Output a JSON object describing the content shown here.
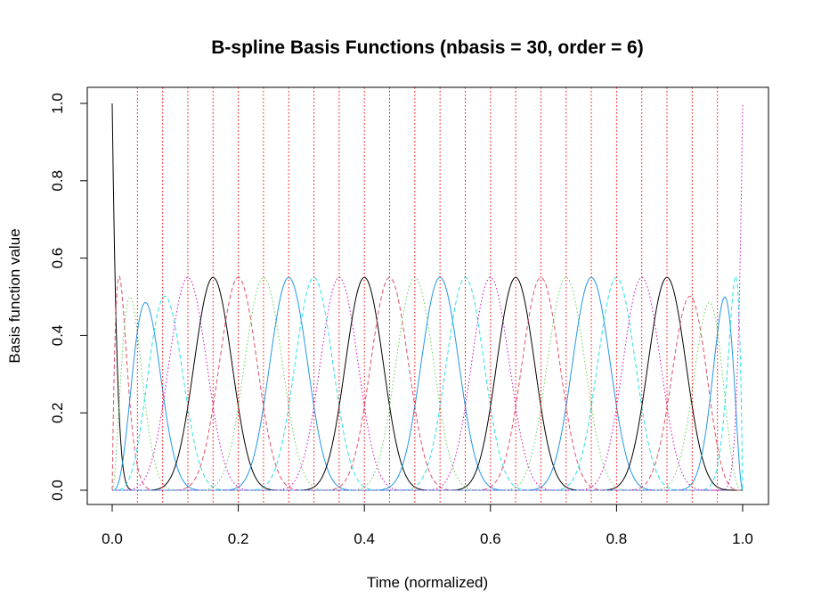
{
  "chart_data": {
    "type": "line",
    "title": "B-spline Basis Functions (nbasis = 30, order = 6)",
    "xlabel": "Time (normalized)",
    "ylabel": "Basis function value",
    "xlim": [
      0,
      1
    ],
    "ylim": [
      0,
      1
    ],
    "x_ticks": [
      "0.0",
      "0.2",
      "0.4",
      "0.6",
      "0.8",
      "1.0"
    ],
    "y_ticks": [
      "0.0",
      "0.2",
      "0.4",
      "0.6",
      "0.8",
      "1.0"
    ],
    "nbasis": 30,
    "order": 6,
    "boundary_knots": [
      0,
      1
    ],
    "interior_knots": [
      0.04,
      0.08,
      0.12,
      0.16,
      0.2,
      0.24,
      0.28,
      0.32,
      0.36,
      0.4,
      0.44,
      0.48,
      0.52,
      0.56,
      0.6,
      0.64,
      0.68,
      0.72,
      0.76,
      0.8,
      0.84,
      0.88,
      0.92,
      0.96
    ],
    "knot_line_color": "#ff0000",
    "series_styles": [
      {
        "color": "#000000",
        "dash": "solid"
      },
      {
        "color": "#df536b",
        "dash": "dashed"
      },
      {
        "color": "#61d04f",
        "dash": "dotted"
      },
      {
        "color": "#2297e6",
        "dash": "solid"
      },
      {
        "color": "#28e2e5",
        "dash": "dashed"
      },
      {
        "color": "#cd0bbc",
        "dash": "dotted"
      }
    ],
    "grid": false,
    "legend": "none"
  }
}
